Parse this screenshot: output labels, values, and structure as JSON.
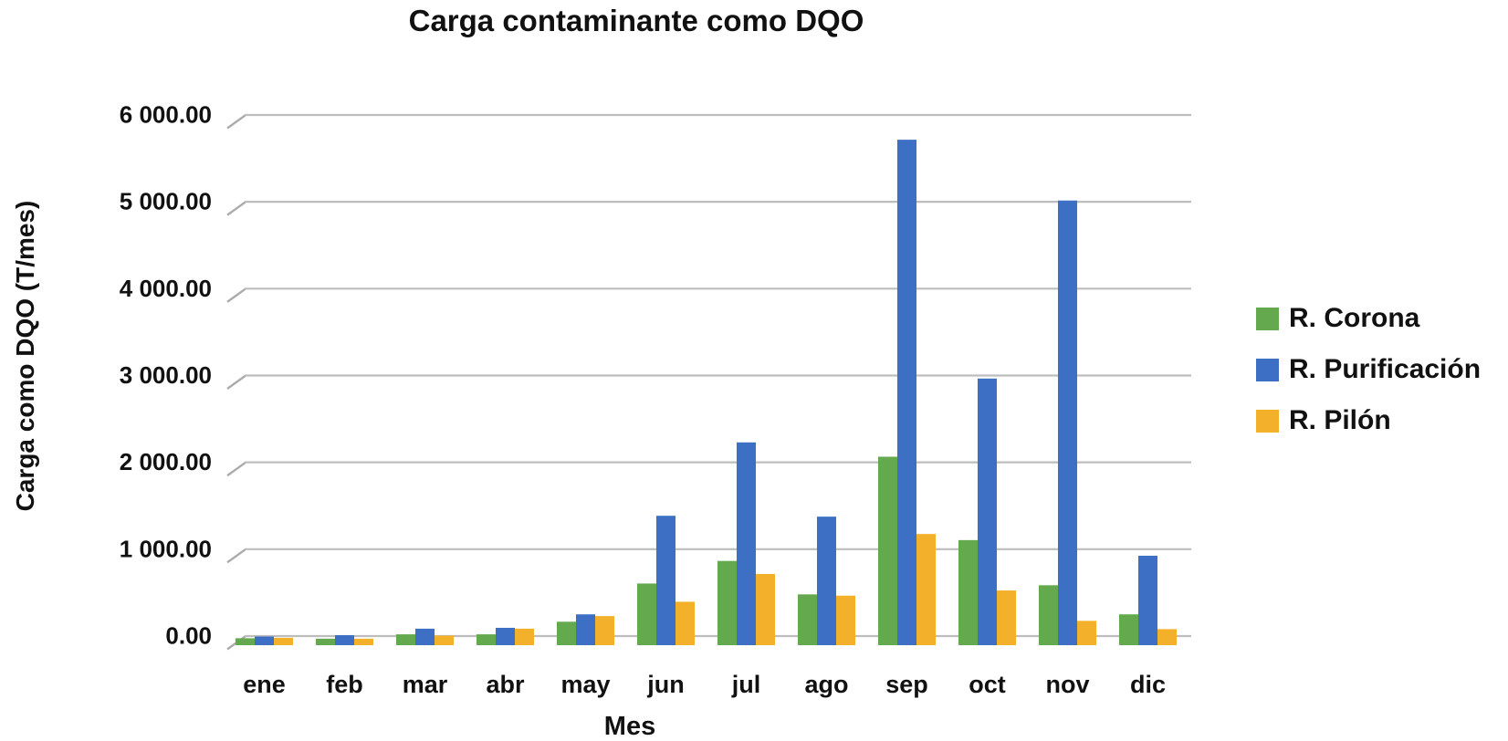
{
  "chart_data": {
    "type": "bar",
    "title": "Carga contaminante como DQO",
    "xlabel": "Mes",
    "ylabel": "Carga como DQO (T/mes)",
    "categories": [
      "ene",
      "feb",
      "mar",
      "abr",
      "may",
      "jun",
      "jul",
      "ago",
      "sep",
      "oct",
      "nov",
      "dic"
    ],
    "series": [
      {
        "name": "R. Corona",
        "color": "#64A94D",
        "values": [
          80,
          75,
          125,
          125,
          270,
          710,
          970,
          585,
          2170,
          1210,
          690,
          355
        ]
      },
      {
        "name": "R. Purificación",
        "color": "#3D70C4",
        "values": [
          100,
          115,
          190,
          200,
          355,
          1490,
          2335,
          1480,
          5820,
          3070,
          5120,
          1030
        ]
      },
      {
        "name": "R. Pilón",
        "color": "#F3B02B",
        "values": [
          85,
          75,
          110,
          190,
          335,
          500,
          820,
          570,
          1280,
          630,
          280,
          185
        ]
      }
    ],
    "ylim": [
      0,
      6000
    ],
    "ytick_step": 1000,
    "ytick_labels": [
      "0.00",
      "1 000.00",
      "2 000.00",
      "3 000.00",
      "4 000.00",
      "5 000.00",
      "6 000.00"
    ],
    "grid": "horizontal",
    "gridline_color": "#BDBDBD",
    "legend_position": "right",
    "text_color": "#111111",
    "background_color": "#FFFFFF"
  }
}
